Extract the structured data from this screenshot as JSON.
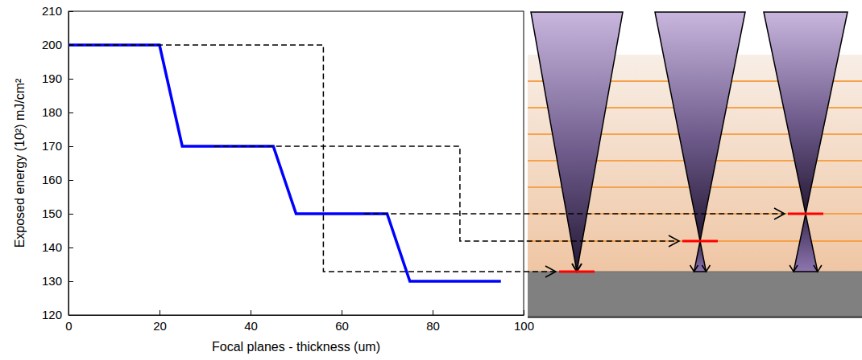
{
  "chart_data": {
    "type": "line",
    "x_label": "Focal planes - thickness (um)",
    "y_label": "Exposed energy (10²) mJ/cm²",
    "x": [
      0,
      20,
      25,
      45,
      50,
      70,
      75,
      95
    ],
    "values": [
      200,
      200,
      170,
      170,
      150,
      150,
      130,
      130
    ],
    "color": "#0000ff",
    "line_style": "solid",
    "xlim": [
      0,
      100
    ],
    "xticks": [
      0,
      20,
      40,
      60,
      80,
      100
    ],
    "ylim": [
      120,
      210
    ],
    "yticks": [
      120,
      130,
      140,
      150,
      160,
      170,
      180,
      190,
      200,
      210
    ],
    "grid": false
  }
}
